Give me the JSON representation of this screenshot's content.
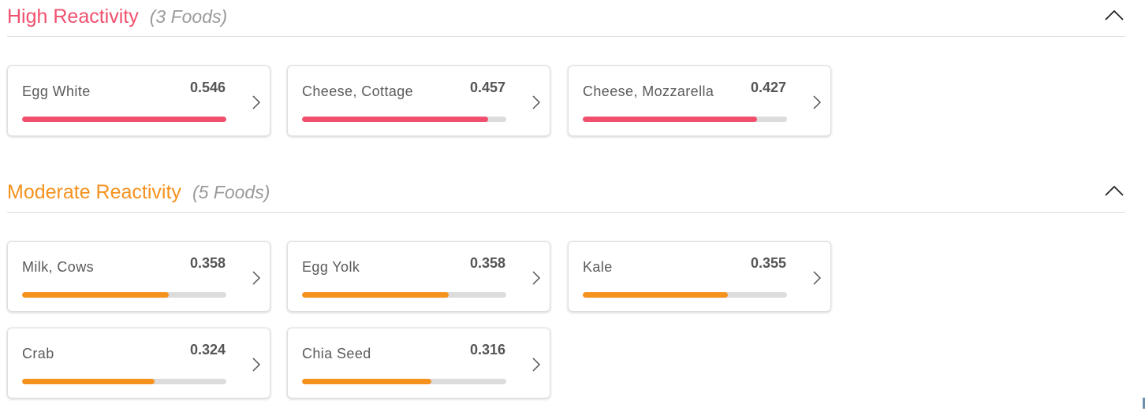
{
  "sections": [
    {
      "id": "high",
      "title": "High Reactivity",
      "count_label": "(3 Foods)",
      "color": "#f0506e",
      "foods": [
        {
          "name": "Egg White",
          "value": "0.546",
          "fill_fraction": 1.0
        },
        {
          "name": "Cheese, Cottage",
          "value": "0.457",
          "fill_fraction": 0.91
        },
        {
          "name": "Cheese, Mozzarella",
          "value": "0.427",
          "fill_fraction": 0.855
        }
      ]
    },
    {
      "id": "moderate",
      "title": "Moderate Reactivity",
      "count_label": "(5 Foods)",
      "color": "#f5921e",
      "foods": [
        {
          "name": "Milk, Cows",
          "value": "0.358",
          "fill_fraction": 0.72
        },
        {
          "name": "Egg Yolk",
          "value": "0.358",
          "fill_fraction": 0.72
        },
        {
          "name": "Kale",
          "value": "0.355",
          "fill_fraction": 0.71
        },
        {
          "name": "Crab",
          "value": "0.324",
          "fill_fraction": 0.65
        },
        {
          "name": "Chia Seed",
          "value": "0.316",
          "fill_fraction": 0.635
        }
      ]
    }
  ],
  "icons": {
    "collapse": "chevron-up-icon",
    "open_card": "chevron-right-icon"
  }
}
